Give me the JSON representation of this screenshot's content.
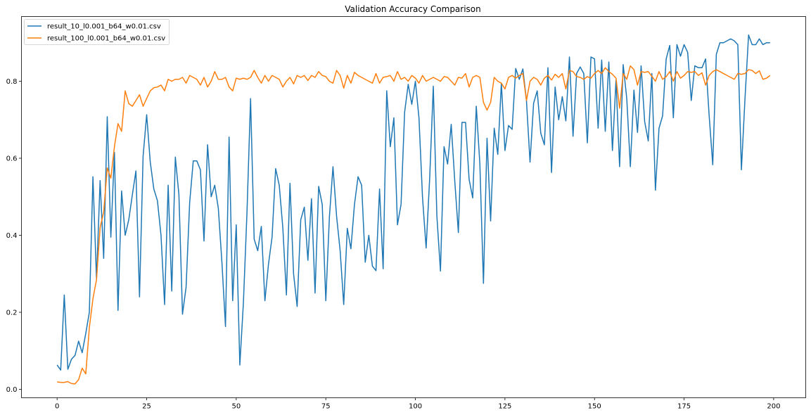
{
  "chart_data": {
    "type": "line",
    "title": "Validation Accuracy Comparison",
    "xlabel": "",
    "ylabel": "",
    "xlim": [
      -9.95,
      208.95
    ],
    "ylim": [
      -0.022,
      0.968
    ],
    "xticks": [
      0,
      25,
      50,
      75,
      100,
      125,
      150,
      175,
      200
    ],
    "yticks": [
      0.0,
      0.2,
      0.4,
      0.6,
      0.8
    ],
    "ytick_labels": [
      "0.0",
      "0.2",
      "0.4",
      "0.6",
      "0.8"
    ],
    "grid": false,
    "legend_position": "top-left",
    "x_start": 0,
    "x_step": 1,
    "series": [
      {
        "name": "result_10_l0.001_b64_w0.01.csv",
        "color": "#1f77b4",
        "values": [
          0.063,
          0.05,
          0.245,
          0.052,
          0.078,
          0.088,
          0.125,
          0.095,
          0.145,
          0.2,
          0.552,
          0.285,
          0.542,
          0.34,
          0.708,
          0.395,
          0.615,
          0.205,
          0.515,
          0.4,
          0.44,
          0.505,
          0.567,
          0.24,
          0.605,
          0.713,
          0.59,
          0.52,
          0.49,
          0.4,
          0.22,
          0.53,
          0.255,
          0.603,
          0.505,
          0.195,
          0.265,
          0.485,
          0.593,
          0.593,
          0.57,
          0.385,
          0.635,
          0.5,
          0.53,
          0.47,
          0.33,
          0.163,
          0.655,
          0.23,
          0.427,
          0.063,
          0.225,
          0.46,
          0.755,
          0.39,
          0.36,
          0.423,
          0.23,
          0.325,
          0.395,
          0.573,
          0.53,
          0.42,
          0.245,
          0.535,
          0.3,
          0.215,
          0.44,
          0.473,
          0.335,
          0.495,
          0.25,
          0.527,
          0.48,
          0.23,
          0.447,
          0.578,
          0.45,
          0.36,
          0.22,
          0.418,
          0.365,
          0.48,
          0.552,
          0.53,
          0.33,
          0.4,
          0.32,
          0.308,
          0.52,
          0.313,
          0.775,
          0.63,
          0.705,
          0.427,
          0.48,
          0.72,
          0.792,
          0.74,
          0.8,
          0.705,
          0.497,
          0.367,
          0.55,
          0.787,
          0.45,
          0.307,
          0.63,
          0.585,
          0.688,
          0.54,
          0.407,
          0.693,
          0.693,
          0.545,
          0.497,
          0.735,
          0.585,
          0.275,
          0.652,
          0.437,
          0.678,
          0.61,
          0.795,
          0.62,
          0.685,
          0.675,
          0.833,
          0.805,
          0.832,
          0.75,
          0.59,
          0.743,
          0.775,
          0.665,
          0.635,
          0.835,
          0.563,
          0.785,
          0.7,
          0.76,
          0.697,
          0.863,
          0.657,
          0.82,
          0.837,
          0.82,
          0.64,
          0.863,
          0.858,
          0.678,
          0.855,
          0.67,
          0.85,
          0.62,
          0.803,
          0.578,
          0.843,
          0.755,
          0.578,
          0.777,
          0.667,
          0.84,
          0.695,
          0.645,
          0.82,
          0.517,
          0.678,
          0.71,
          0.858,
          0.893,
          0.705,
          0.895,
          0.865,
          0.895,
          0.875,
          0.75,
          0.84,
          0.835,
          0.835,
          0.858,
          0.71,
          0.583,
          0.87,
          0.9,
          0.9,
          0.905,
          0.91,
          0.905,
          0.895,
          0.57,
          0.755,
          0.92,
          0.895,
          0.895,
          0.91,
          0.895,
          0.9,
          0.9
        ]
      },
      {
        "name": "result_100_l0.001_b64_w0.01.csv",
        "color": "#ff7f0e",
        "values": [
          0.019,
          0.018,
          0.018,
          0.02,
          0.015,
          0.014,
          0.025,
          0.055,
          0.04,
          0.16,
          0.235,
          0.285,
          0.42,
          0.46,
          0.575,
          0.548,
          0.63,
          0.69,
          0.67,
          0.775,
          0.742,
          0.735,
          0.75,
          0.765,
          0.735,
          0.755,
          0.775,
          0.783,
          0.785,
          0.79,
          0.775,
          0.805,
          0.8,
          0.805,
          0.805,
          0.81,
          0.795,
          0.815,
          0.81,
          0.805,
          0.79,
          0.81,
          0.785,
          0.8,
          0.825,
          0.805,
          0.805,
          0.81,
          0.785,
          0.775,
          0.808,
          0.805,
          0.808,
          0.805,
          0.81,
          0.828,
          0.81,
          0.795,
          0.815,
          0.8,
          0.815,
          0.81,
          0.805,
          0.785,
          0.8,
          0.81,
          0.793,
          0.815,
          0.81,
          0.815,
          0.802,
          0.815,
          0.81,
          0.825,
          0.815,
          0.812,
          0.8,
          0.795,
          0.828,
          0.815,
          0.782,
          0.815,
          0.795,
          0.823,
          0.815,
          0.81,
          0.805,
          0.8,
          0.795,
          0.82,
          0.795,
          0.81,
          0.812,
          0.815,
          0.8,
          0.825,
          0.805,
          0.81,
          0.8,
          0.815,
          0.808,
          0.795,
          0.815,
          0.8,
          0.805,
          0.81,
          0.805,
          0.8,
          0.812,
          0.81,
          0.8,
          0.79,
          0.81,
          0.808,
          0.82,
          0.785,
          0.81,
          0.815,
          0.81,
          0.745,
          0.725,
          0.745,
          0.81,
          0.8,
          0.795,
          0.78,
          0.81,
          0.815,
          0.808,
          0.815,
          0.82,
          0.75,
          0.8,
          0.81,
          0.805,
          0.79,
          0.808,
          0.815,
          0.803,
          0.818,
          0.81,
          0.82,
          0.78,
          0.828,
          0.825,
          0.812,
          0.81,
          0.805,
          0.812,
          0.808,
          0.82,
          0.828,
          0.82,
          0.835,
          0.825,
          0.818,
          0.808,
          0.73,
          0.82,
          0.805,
          0.84,
          0.83,
          0.79,
          0.825,
          0.823,
          0.825,
          0.813,
          0.8,
          0.825,
          0.805,
          0.812,
          0.825,
          0.8,
          0.825,
          0.808,
          0.815,
          0.825,
          0.823,
          0.825,
          0.815,
          0.822,
          0.79,
          0.815,
          0.825,
          0.83,
          0.825,
          0.82,
          0.815,
          0.81,
          0.805,
          0.82,
          0.818,
          0.82,
          0.83,
          0.828,
          0.82,
          0.827,
          0.805,
          0.808,
          0.815
        ]
      }
    ]
  }
}
